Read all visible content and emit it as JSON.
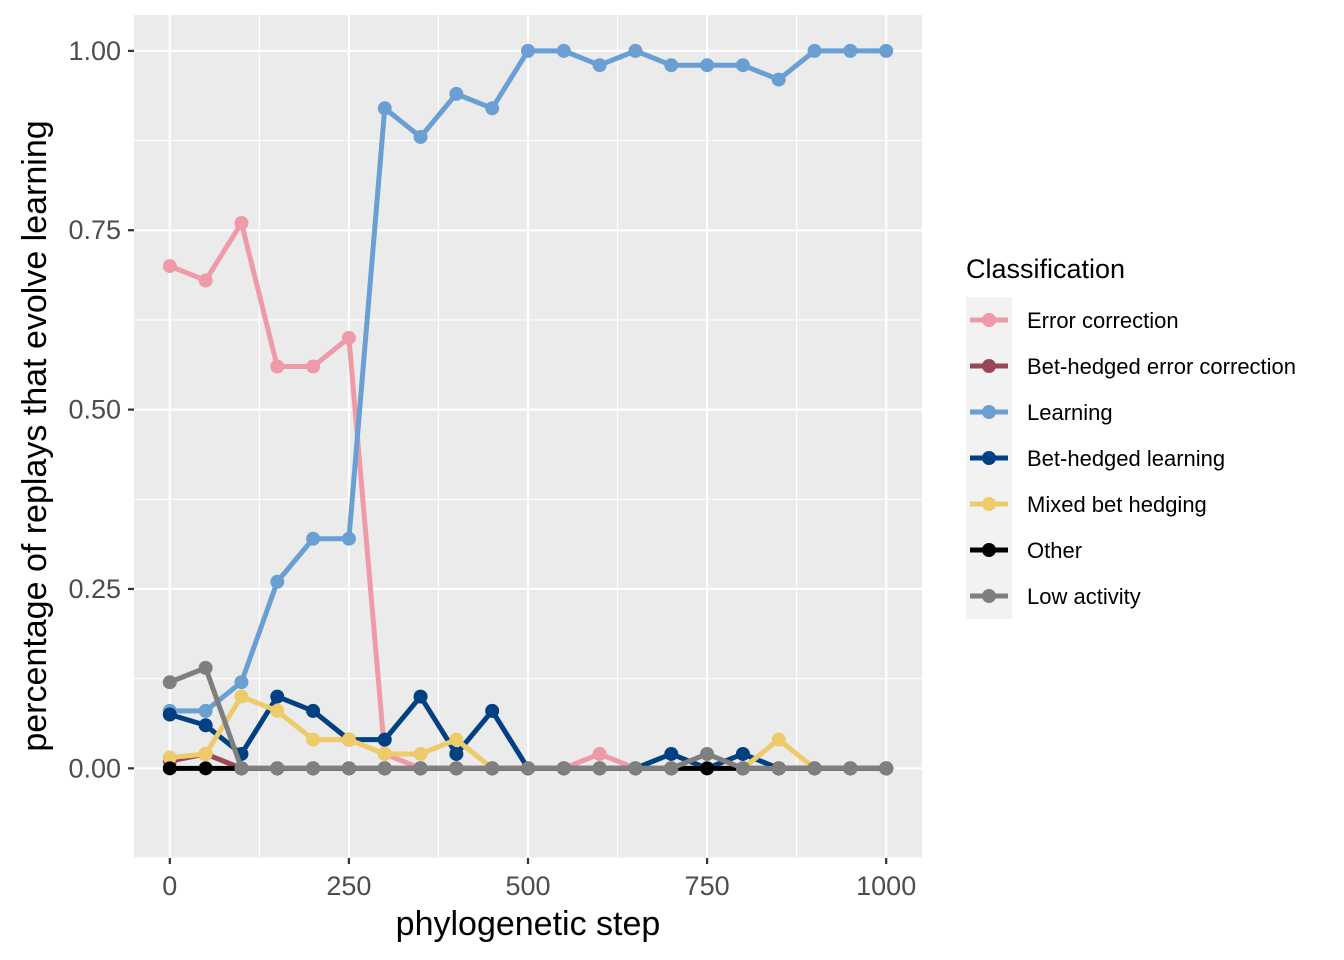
{
  "chart_data": {
    "type": "line",
    "title": "",
    "xlabel": "phylogenetic step",
    "ylabel": "percentage of replays that evolve learning",
    "xlim": [
      -50,
      1050
    ],
    "ylim": [
      -0.125,
      1.05
    ],
    "x_ticks": [
      0,
      250,
      500,
      750,
      1000
    ],
    "x_tick_labels": [
      "0",
      "250",
      "500",
      "750",
      "1000"
    ],
    "y_ticks": [
      0,
      0.25,
      0.5,
      0.75,
      1.0
    ],
    "y_tick_labels": [
      "0.00",
      "0.25",
      "0.50",
      "0.75",
      "1.00"
    ],
    "grid": true,
    "legend": {
      "title": "Classification",
      "position": "right"
    },
    "x": [
      0,
      50,
      100,
      150,
      200,
      250,
      300,
      350,
      400,
      450,
      500,
      550,
      600,
      650,
      700,
      750,
      800,
      850,
      900,
      950,
      1000
    ],
    "series": [
      {
        "name": "Error correction",
        "color": "#ee9aa9",
        "values": [
          0.7,
          0.68,
          0.76,
          0.56,
          0.56,
          0.6,
          0.02,
          0.0,
          0.0,
          0.0,
          0.0,
          0.0,
          0.02,
          0.0,
          0.0,
          0.0,
          0.0,
          0.0,
          0.0,
          0.0,
          0.0
        ]
      },
      {
        "name": "Bet-hedged error correction",
        "color": "#9b4656",
        "values": [
          0.01,
          0.02,
          0.0,
          0.0,
          0.0,
          0.0,
          0.0,
          0.0,
          0.0,
          0.0,
          0.0,
          0.0,
          0.0,
          0.0,
          0.0,
          0.0,
          0.0,
          0.0,
          0.0,
          0.0,
          0.0
        ]
      },
      {
        "name": "Learning",
        "color": "#6a9fd3",
        "values": [
          0.08,
          0.08,
          0.12,
          0.26,
          0.32,
          0.32,
          0.92,
          0.88,
          0.94,
          0.92,
          1.0,
          1.0,
          0.98,
          1.0,
          0.98,
          0.98,
          0.98,
          0.96,
          1.0,
          1.0,
          1.0
        ]
      },
      {
        "name": "Bet-hedged learning",
        "color": "#014082",
        "values": [
          0.075,
          0.06,
          0.02,
          0.1,
          0.08,
          0.04,
          0.04,
          0.1,
          0.02,
          0.08,
          0.0,
          0.0,
          0.0,
          0.0,
          0.02,
          0.0,
          0.02,
          0.0,
          0.0,
          0.0,
          0.0
        ]
      },
      {
        "name": "Mixed bet hedging",
        "color": "#eecb6a",
        "values": [
          0.015,
          0.02,
          0.1,
          0.08,
          0.04,
          0.04,
          0.02,
          0.02,
          0.04,
          0.0,
          0.0,
          0.0,
          0.0,
          0.0,
          0.0,
          0.0,
          0.0,
          0.04,
          0.0,
          0.0,
          0.0
        ]
      },
      {
        "name": "Other",
        "color": "#000000",
        "values": [
          0.0,
          0.0,
          0.0,
          0.0,
          0.0,
          0.0,
          0.0,
          0.0,
          0.0,
          0.0,
          0.0,
          0.0,
          0.0,
          0.0,
          0.0,
          0.0,
          0.0,
          0.0,
          0.0,
          0.0,
          0.0
        ]
      },
      {
        "name": "Low activity",
        "color": "#7f7f7f",
        "values": [
          0.12,
          0.14,
          0.0,
          0.0,
          0.0,
          0.0,
          0.0,
          0.0,
          0.0,
          0.0,
          0.0,
          0.0,
          0.0,
          0.0,
          0.0,
          0.02,
          0.0,
          0.0,
          0.0,
          0.0,
          0.0
        ]
      }
    ]
  }
}
